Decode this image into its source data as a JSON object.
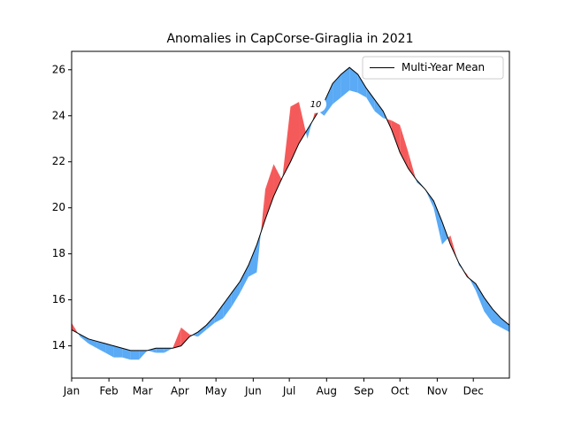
{
  "chart_data": {
    "type": "anomaly",
    "title": "Anomalies in CapCorse-Giraglia in 2021",
    "x": [
      0,
      7,
      14,
      21,
      28,
      35,
      42,
      49,
      56,
      63,
      70,
      77,
      84,
      91,
      98,
      105,
      112,
      119,
      126,
      133,
      140,
      147,
      154,
      161,
      168,
      175,
      182,
      189,
      196,
      203,
      210,
      217,
      224,
      231,
      238,
      245,
      252,
      259,
      266,
      273,
      280,
      287,
      294,
      301,
      308,
      315,
      322,
      329,
      336,
      343,
      350,
      357,
      364
    ],
    "series": [
      {
        "name": "Multi-Year Mean",
        "color": "#000000",
        "values": [
          14.7,
          14.5,
          14.3,
          14.2,
          14.1,
          14.0,
          13.9,
          13.8,
          13.8,
          13.8,
          13.9,
          13.9,
          13.9,
          14.0,
          14.4,
          14.6,
          14.9,
          15.3,
          15.8,
          16.3,
          16.8,
          17.5,
          18.4,
          19.5,
          20.5,
          21.3,
          22.0,
          22.8,
          23.4,
          24.0,
          24.6,
          25.4,
          25.8,
          26.1,
          25.8,
          25.2,
          24.7,
          24.2,
          23.4,
          22.4,
          21.7,
          21.2,
          20.8,
          20.3,
          19.4,
          18.4,
          17.6,
          17.0,
          16.7,
          16.1,
          15.6,
          15.2,
          14.9
        ]
      }
    ],
    "observed": {
      "values": [
        15.0,
        14.4,
        14.1,
        13.9,
        13.7,
        13.5,
        13.5,
        13.4,
        13.4,
        13.8,
        13.7,
        13.7,
        13.9,
        14.8,
        14.5,
        14.4,
        14.7,
        15.0,
        15.2,
        15.7,
        16.3,
        17.0,
        17.2,
        20.8,
        21.9,
        21.2,
        24.4,
        24.6,
        23.0,
        24.3,
        24.0,
        24.5,
        24.8,
        25.1,
        25.0,
        24.8,
        24.2,
        23.9,
        23.8,
        23.6,
        22.4,
        21.1,
        20.8,
        20.0,
        18.4,
        18.8,
        17.5,
        17.1,
        16.4,
        15.5,
        15.0,
        14.8,
        14.6
      ],
      "above_color": "#f55a5a",
      "below_color": "#5aaaf5"
    },
    "annotation": {
      "text": "10",
      "x": 203,
      "y": 24.5
    },
    "xlim": [
      0,
      364
    ],
    "xticks": [
      {
        "value": 0,
        "label": "Jan"
      },
      {
        "value": 31,
        "label": "Feb"
      },
      {
        "value": 59,
        "label": "Mar"
      },
      {
        "value": 90,
        "label": "Apr"
      },
      {
        "value": 120,
        "label": "May"
      },
      {
        "value": 151,
        "label": "Jun"
      },
      {
        "value": 181,
        "label": "Jul"
      },
      {
        "value": 212,
        "label": "Aug"
      },
      {
        "value": 243,
        "label": "Sep"
      },
      {
        "value": 273,
        "label": "Oct"
      },
      {
        "value": 304,
        "label": "Nov"
      },
      {
        "value": 334,
        "label": "Dec"
      }
    ],
    "ylim": [
      12.6,
      26.8
    ],
    "yticks": [
      14,
      16,
      18,
      20,
      22,
      24,
      26
    ],
    "legend": "upper right"
  }
}
